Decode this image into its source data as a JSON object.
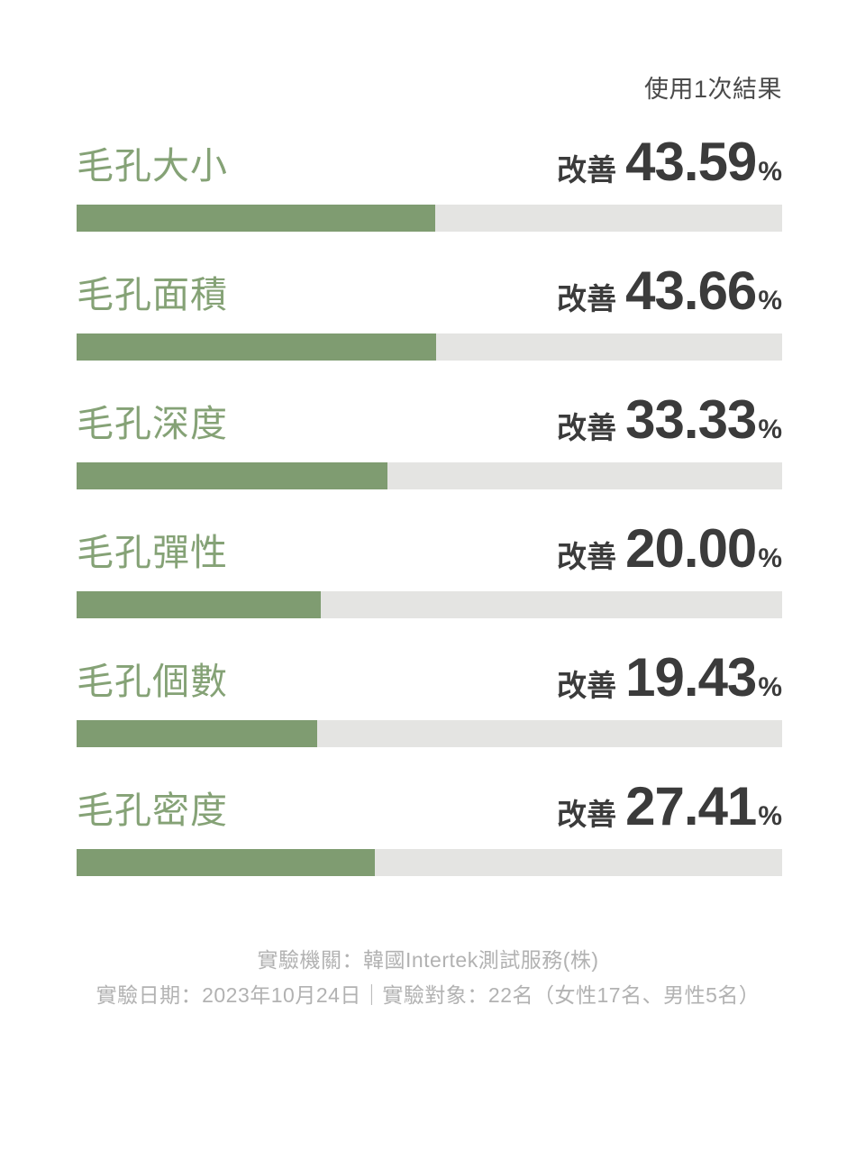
{
  "header": {
    "caption": "使用1次結果"
  },
  "chart_data": {
    "type": "bar",
    "title": "使用1次結果",
    "orientation": "horizontal",
    "improve_label": "改善",
    "unit": "%",
    "categories": [
      "毛孔大小",
      "毛孔面積",
      "毛孔深度",
      "毛孔彈性",
      "毛孔個數",
      "毛孔密度"
    ],
    "values": [
      43.59,
      43.66,
      33.33,
      20.0,
      19.43,
      27.41
    ],
    "rows": [
      {
        "label": "毛孔大小",
        "value": "43.59",
        "bar_pct": 50.8
      },
      {
        "label": "毛孔面積",
        "value": "43.66",
        "bar_pct": 51.0
      },
      {
        "label": "毛孔深度",
        "value": "33.33",
        "bar_pct": 44.1
      },
      {
        "label": "毛孔彈性",
        "value": "20.00",
        "bar_pct": 34.6
      },
      {
        "label": "毛孔個數",
        "value": "19.43",
        "bar_pct": 34.1
      },
      {
        "label": "毛孔密度",
        "value": "27.41",
        "bar_pct": 42.3
      }
    ],
    "colors": {
      "bar": "#7f9c71",
      "track": "#e4e4e2",
      "label": "#85a276",
      "value_text": "#3b3b3b"
    },
    "legend": "none",
    "grid": false
  },
  "footer": {
    "line1": "實驗機關：韓國Intertek測試服務(株)",
    "line2": "實驗日期：2023年10月24日｜實驗對象：22名（女性17名、男性5名）"
  }
}
